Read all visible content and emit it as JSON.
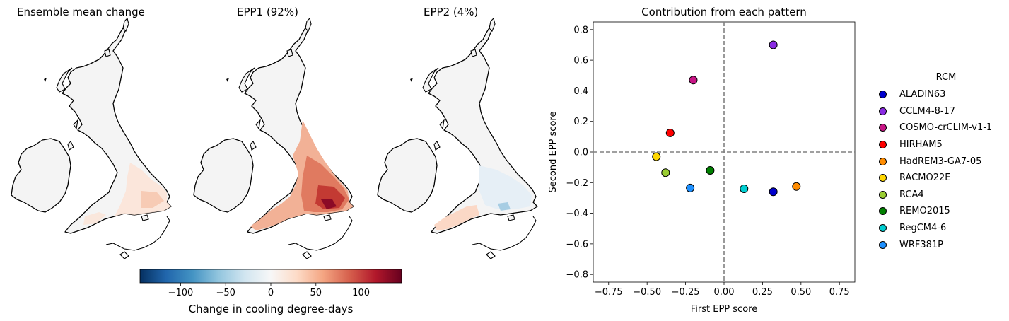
{
  "maps": {
    "titles": [
      "Ensemble mean change",
      "EPP1 (92%)",
      "EPP2 (4%)"
    ]
  },
  "colorbar": {
    "label": "Change in cooling degree-days",
    "ticks": [
      -100,
      -50,
      0,
      50,
      100
    ],
    "tick_labels": [
      "−100",
      "−50",
      "0",
      "50",
      "100"
    ],
    "range": [
      -145,
      145
    ],
    "colormap": [
      "#053061",
      "#2166ac",
      "#4393c3",
      "#92c5de",
      "#d1e5f0",
      "#f7f7f7",
      "#fddbc7",
      "#f4a582",
      "#d6604d",
      "#b2182b",
      "#67001f"
    ]
  },
  "chart_data": {
    "type": "scatter",
    "title": "Contribution from each pattern",
    "xlabel": "First EPP score",
    "ylabel": "Second EPP score",
    "xlim": [
      -0.85,
      0.85
    ],
    "ylim": [
      -0.85,
      0.85
    ],
    "xticks": [
      -0.75,
      -0.5,
      -0.25,
      0.0,
      0.25,
      0.5,
      0.75
    ],
    "yticks": [
      -0.8,
      -0.6,
      -0.4,
      -0.2,
      0.0,
      0.2,
      0.4,
      0.6,
      0.8
    ],
    "xtick_labels": [
      "−0.75",
      "−0.50",
      "−0.25",
      "0.00",
      "0.25",
      "0.50",
      "0.75"
    ],
    "ytick_labels": [
      "−0.8",
      "−0.6",
      "−0.4",
      "−0.2",
      "0.0",
      "0.2",
      "0.4",
      "0.6",
      "0.8"
    ],
    "reference_lines": {
      "x": 0.0,
      "y": 0.0,
      "style": "dashed",
      "color": "#808080"
    },
    "legend": {
      "title": "RCM",
      "placement": "outside-right"
    },
    "series": [
      {
        "name": "ALADIN63",
        "color": "#0000cd",
        "x": 0.32,
        "y": -0.26
      },
      {
        "name": "CCLM4-8-17",
        "color": "#8a2be2",
        "x": 0.32,
        "y": 0.7
      },
      {
        "name": "COSMO-crCLIM-v1-1",
        "color": "#c71585",
        "x": -0.2,
        "y": 0.47
      },
      {
        "name": "HIRHAM5",
        "color": "#ff0000",
        "x": -0.35,
        "y": 0.125
      },
      {
        "name": "HadREM3-GA7-05",
        "color": "#ff8c00",
        "x": 0.47,
        "y": -0.225
      },
      {
        "name": "RACMO22E",
        "color": "#ffd700",
        "x": -0.44,
        "y": -0.03
      },
      {
        "name": "RCA4",
        "color": "#9acd32",
        "x": -0.38,
        "y": -0.135
      },
      {
        "name": "REMO2015",
        "color": "#008000",
        "x": -0.09,
        "y": -0.12
      },
      {
        "name": "RegCM4-6",
        "color": "#00ced1",
        "x": 0.13,
        "y": -0.24
      },
      {
        "name": "WRF381P",
        "color": "#1e90ff",
        "x": -0.22,
        "y": -0.235
      }
    ]
  }
}
